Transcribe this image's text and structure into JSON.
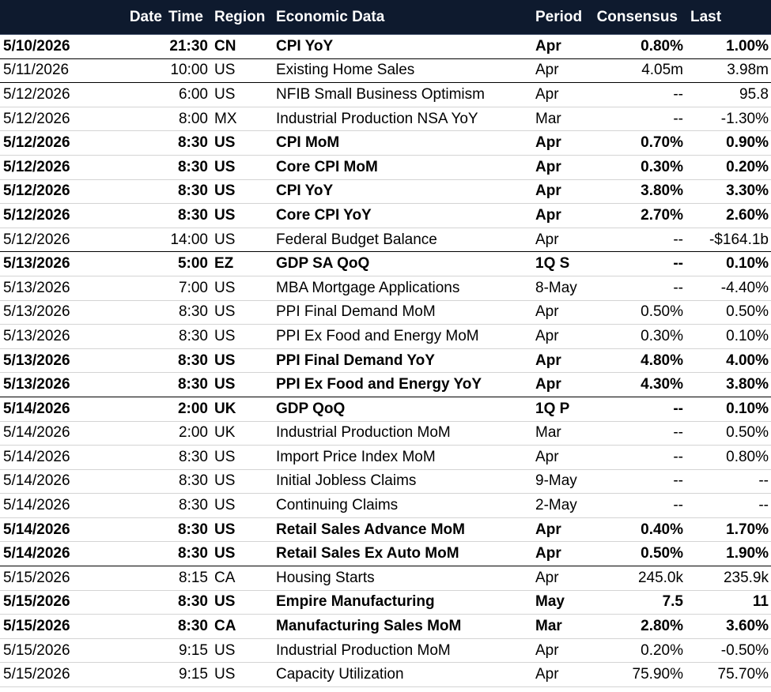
{
  "headers": {
    "date": "Date",
    "time": "Time",
    "region": "Region",
    "event": "Economic Data",
    "period": "Period",
    "consensus": "Consensus",
    "last": "Last"
  },
  "rows": [
    {
      "date": "5/10/2026",
      "time": "21:30",
      "region": "CN",
      "event": "CPI YoY",
      "period": "Apr",
      "consensus": "0.80%",
      "last": "1.00%",
      "bold": true
    },
    {
      "date": "5/11/2026",
      "time": "10:00",
      "region": "US",
      "event": "Existing Home Sales",
      "period": "Apr",
      "consensus": "4.05m",
      "last": "3.98m",
      "bold": false
    },
    {
      "date": "5/12/2026",
      "time": "6:00",
      "region": "US",
      "event": "NFIB Small Business Optimism",
      "period": "Apr",
      "consensus": "--",
      "last": "95.8",
      "bold": false
    },
    {
      "date": "5/12/2026",
      "time": "8:00",
      "region": "MX",
      "event": "Industrial Production NSA YoY",
      "period": "Mar",
      "consensus": "--",
      "last": "-1.30%",
      "bold": false
    },
    {
      "date": "5/12/2026",
      "time": "8:30",
      "region": "US",
      "event": "CPI MoM",
      "period": "Apr",
      "consensus": "0.70%",
      "last": "0.90%",
      "bold": true
    },
    {
      "date": "5/12/2026",
      "time": "8:30",
      "region": "US",
      "event": "Core CPI MoM",
      "period": "Apr",
      "consensus": "0.30%",
      "last": "0.20%",
      "bold": true
    },
    {
      "date": "5/12/2026",
      "time": "8:30",
      "region": "US",
      "event": "CPI YoY",
      "period": "Apr",
      "consensus": "3.80%",
      "last": "3.30%",
      "bold": true
    },
    {
      "date": "5/12/2026",
      "time": "8:30",
      "region": "US",
      "event": "Core CPI YoY",
      "period": "Apr",
      "consensus": "2.70%",
      "last": "2.60%",
      "bold": true
    },
    {
      "date": "5/12/2026",
      "time": "14:00",
      "region": "US",
      "event": "Federal Budget Balance",
      "period": "Apr",
      "consensus": "--",
      "last": "-$164.1b",
      "bold": false
    },
    {
      "date": "5/13/2026",
      "time": "5:00",
      "region": "EZ",
      "event": "GDP SA QoQ",
      "period": "1Q S",
      "consensus": "--",
      "last": "0.10%",
      "bold": true
    },
    {
      "date": "5/13/2026",
      "time": "7:00",
      "region": "US",
      "event": "MBA Mortgage Applications",
      "period": "8-May",
      "consensus": "--",
      "last": "-4.40%",
      "bold": false
    },
    {
      "date": "5/13/2026",
      "time": "8:30",
      "region": "US",
      "event": "PPI Final Demand MoM",
      "period": "Apr",
      "consensus": "0.50%",
      "last": "0.50%",
      "bold": false
    },
    {
      "date": "5/13/2026",
      "time": "8:30",
      "region": "US",
      "event": "PPI Ex Food and Energy MoM",
      "period": "Apr",
      "consensus": "0.30%",
      "last": "0.10%",
      "bold": false
    },
    {
      "date": "5/13/2026",
      "time": "8:30",
      "region": "US",
      "event": "PPI Final Demand YoY",
      "period": "Apr",
      "consensus": "4.80%",
      "last": "4.00%",
      "bold": true
    },
    {
      "date": "5/13/2026",
      "time": "8:30",
      "region": "US",
      "event": "PPI Ex Food and Energy YoY",
      "period": "Apr",
      "consensus": "4.30%",
      "last": "3.80%",
      "bold": true
    },
    {
      "date": "5/14/2026",
      "time": "2:00",
      "region": "UK",
      "event": "GDP QoQ",
      "period": "1Q P",
      "consensus": "--",
      "last": "0.10%",
      "bold": true
    },
    {
      "date": "5/14/2026",
      "time": "2:00",
      "region": "UK",
      "event": "Industrial Production MoM",
      "period": "Mar",
      "consensus": "--",
      "last": "0.50%",
      "bold": false
    },
    {
      "date": "5/14/2026",
      "time": "8:30",
      "region": "US",
      "event": "Import Price Index MoM",
      "period": "Apr",
      "consensus": "--",
      "last": "0.80%",
      "bold": false
    },
    {
      "date": "5/14/2026",
      "time": "8:30",
      "region": "US",
      "event": "Initial Jobless Claims",
      "period": "9-May",
      "consensus": "--",
      "last": "--",
      "bold": false
    },
    {
      "date": "5/14/2026",
      "time": "8:30",
      "region": "US",
      "event": "Continuing Claims",
      "period": "2-May",
      "consensus": "--",
      "last": "--",
      "bold": false
    },
    {
      "date": "5/14/2026",
      "time": "8:30",
      "region": "US",
      "event": "Retail Sales Advance MoM",
      "period": "Apr",
      "consensus": "0.40%",
      "last": "1.70%",
      "bold": true
    },
    {
      "date": "5/14/2026",
      "time": "8:30",
      "region": "US",
      "event": "Retail Sales Ex Auto MoM",
      "period": "Apr",
      "consensus": "0.50%",
      "last": "1.90%",
      "bold": true
    },
    {
      "date": "5/15/2026",
      "time": "8:15",
      "region": "CA",
      "event": "Housing Starts",
      "period": "Apr",
      "consensus": "245.0k",
      "last": "235.9k",
      "bold": false
    },
    {
      "date": "5/15/2026",
      "time": "8:30",
      "region": "US",
      "event": "Empire Manufacturing",
      "period": "May",
      "consensus": "7.5",
      "last": "11",
      "bold": true
    },
    {
      "date": "5/15/2026",
      "time": "8:30",
      "region": "CA",
      "event": "Manufacturing Sales MoM",
      "period": "Mar",
      "consensus": "2.80%",
      "last": "3.60%",
      "bold": true
    },
    {
      "date": "5/15/2026",
      "time": "9:15",
      "region": "US",
      "event": "Industrial Production MoM",
      "period": "Apr",
      "consensus": "0.20%",
      "last": "-0.50%",
      "bold": false
    },
    {
      "date": "5/15/2026",
      "time": "9:15",
      "region": "US",
      "event": "Capacity Utilization",
      "period": "Apr",
      "consensus": "75.90%",
      "last": "75.70%",
      "bold": false
    }
  ],
  "colors": {
    "header_bg": "#0e1a2e",
    "header_text": "#ffffff"
  }
}
